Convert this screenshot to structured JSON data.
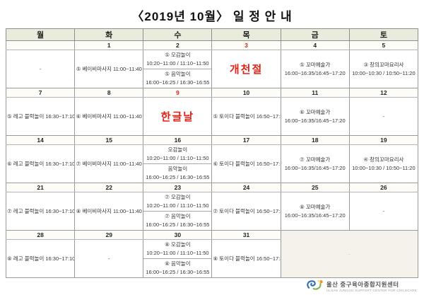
{
  "title": "〈2019년 10월〉 일 정 안 내",
  "colors": {
    "holiday_red": "#e02315",
    "red_date": "#d8261c",
    "header_bg": "#e9ecdd",
    "date_row_bg": "#fdfcf7",
    "merged_cell_bg": "#f4f2ea"
  },
  "footer": {
    "org_ko": "울산 중구육아종합지원센터",
    "org_en": "ULSAN JUNGGU SUPPORT CENTER FOR CHILDCARE"
  },
  "calendar": {
    "day_headers": [
      "월",
      "화",
      "수",
      "목",
      "금",
      "토"
    ],
    "weeks": [
      {
        "dates": [
          {
            "label": ""
          },
          {
            "label": "1"
          },
          {
            "label": "2"
          },
          {
            "label": "3",
            "red": true
          },
          {
            "label": "4"
          },
          {
            "label": "5"
          }
        ],
        "cells": [
          {
            "type": "dash",
            "label": "-"
          },
          {
            "type": "single",
            "lines": [
              "⑤ 베이비마사지 11:00~11:40"
            ]
          },
          {
            "type": "double",
            "blocks": [
              {
                "lines": [
                  "⑤ 오감놀이",
                  "10:20~11:00 / 11:10~11:50"
                ]
              },
              {
                "lines": [
                  "⑤ 음악놀이",
                  "16:00~16:25 / 16:30~16:55"
                ]
              }
            ]
          },
          {
            "type": "holiday",
            "label": "개천절"
          },
          {
            "type": "single",
            "lines": [
              "⑤ 꼬마예술가",
              "16:00~16:35/16:45~17:20"
            ]
          },
          {
            "type": "single",
            "lines": [
              "③ 창의꼬마요리사",
              "10:00~10:30 / 10:50~11:20"
            ]
          }
        ]
      },
      {
        "dates": [
          {
            "label": "7"
          },
          {
            "label": "8"
          },
          {
            "label": "9",
            "red": true
          },
          {
            "label": "10"
          },
          {
            "label": "11"
          },
          {
            "label": "12"
          }
        ],
        "cells": [
          {
            "type": "single",
            "lines": [
              "⑤ 레고 블럭놀이 16:30~17:10"
            ]
          },
          {
            "type": "single",
            "lines": [
              "⑥ 베이비마사지 11:00~11:40"
            ]
          },
          {
            "type": "holiday",
            "label": "한글날"
          },
          {
            "type": "single",
            "lines": [
              "⑤ 토이다 블럭놀이 16:50~17:30"
            ]
          },
          {
            "type": "single",
            "lines": [
              "⑥ 꼬마예술가",
              "16:00~16:35/16:45~17:20"
            ]
          },
          {
            "type": "dash",
            "label": "-"
          }
        ]
      },
      {
        "dates": [
          {
            "label": "14"
          },
          {
            "label": "15"
          },
          {
            "label": "16"
          },
          {
            "label": "17"
          },
          {
            "label": "18"
          },
          {
            "label": "19"
          }
        ],
        "cells": [
          {
            "type": "single",
            "lines": [
              "⑥ 레고 블럭놀이 16:30~17:10"
            ]
          },
          {
            "type": "single",
            "lines": [
              "⑦ 베이비마사지 11:00~11:40"
            ]
          },
          {
            "type": "double",
            "blocks": [
              {
                "lines": [
                  "오감놀이",
                  "10:20~11:00 / 11:10~11:50"
                ]
              },
              {
                "lines": [
                  "음악놀이",
                  "16:00~16:25 / 16:30~16:55"
                ]
              }
            ]
          },
          {
            "type": "single",
            "lines": [
              "⑥ 토이다 블럭놀이 16:50~17:30"
            ]
          },
          {
            "type": "single",
            "lines": [
              "⑦ 꼬마예술가",
              "16:00~16:35/16:45~17:20"
            ]
          },
          {
            "type": "single",
            "lines": [
              "④ 창의꼬마요리사",
              "10:00~10:30 / 10:50~11:20"
            ]
          }
        ]
      },
      {
        "dates": [
          {
            "label": "21"
          },
          {
            "label": "22"
          },
          {
            "label": "23"
          },
          {
            "label": "24"
          },
          {
            "label": "25"
          },
          {
            "label": "26"
          }
        ],
        "cells": [
          {
            "type": "single",
            "lines": [
              "⑦ 레고 블럭놀이 16:30~17:10"
            ]
          },
          {
            "type": "single",
            "lines": [
              "⑧ 베이비마사지 11:00~11:40"
            ]
          },
          {
            "type": "double",
            "blocks": [
              {
                "lines": [
                  "⑦ 오감놀이",
                  "10:20~11:00 / 11:10~11:50"
                ]
              },
              {
                "lines": [
                  "⑦ 음악놀이",
                  "16:00~16:25 / 16:30~16:55"
                ]
              }
            ]
          },
          {
            "type": "single",
            "lines": [
              "⑦ 토이다 블럭놀이 16:50~17:30"
            ]
          },
          {
            "type": "single",
            "lines": [
              "⑧ 꼬마예술가",
              "16:00~16:35/16:45~17:20"
            ]
          },
          {
            "type": "dash",
            "label": "-"
          }
        ]
      },
      {
        "dates": [
          {
            "label": "28"
          },
          {
            "label": "29"
          },
          {
            "label": "30"
          },
          {
            "label": "31"
          }
        ],
        "merged": {
          "label": "-",
          "colspan": 2
        },
        "cells": [
          {
            "type": "single",
            "lines": [
              "⑧ 레고 블럭놀이 16:30~17:10"
            ]
          },
          {
            "type": "dash",
            "label": "-"
          },
          {
            "type": "double",
            "blocks": [
              {
                "lines": [
                  "⑧ 오감놀이",
                  "10:20~11:00 / 11:10~11:50"
                ]
              },
              {
                "lines": [
                  "⑧ 음악놀이",
                  "16:00~16:25 / 16:30~16:55"
                ]
              }
            ]
          },
          {
            "type": "single",
            "lines": [
              "⑧ 토이다 블럭놀이 16:50~17:30"
            ]
          }
        ]
      }
    ]
  }
}
